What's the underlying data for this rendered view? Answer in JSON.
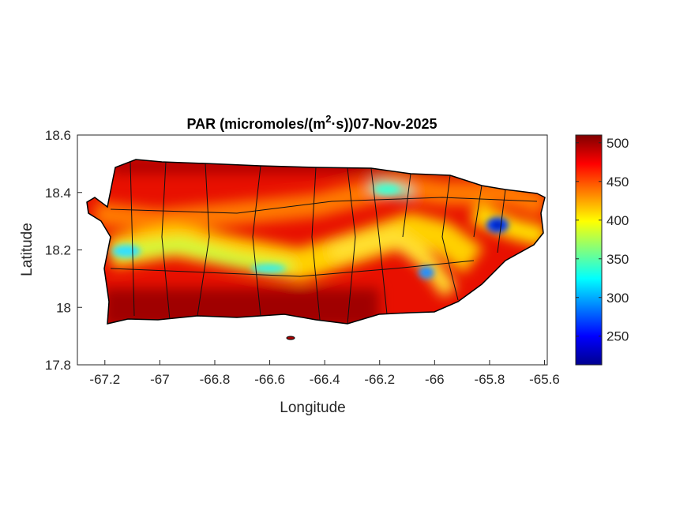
{
  "chart_data": {
    "type": "heatmap",
    "title_main": "PAR (micromoles/(m",
    "title_sup": "2",
    "title_rest": "·s))07-Nov-2025",
    "xlabel": "Longitude",
    "ylabel": "Latitude",
    "xlim": [
      -67.3,
      -65.59
    ],
    "ylim": [
      17.8,
      18.6
    ],
    "xticks": [
      -67.2,
      -67,
      -66.8,
      -66.6,
      -66.4,
      -66.2,
      -66,
      -65.8,
      -65.6
    ],
    "xtick_labels": [
      "-67.2",
      "-67",
      "-66.8",
      "-66.6",
      "-66.4",
      "-66.2",
      "-66",
      "-65.8",
      "-65.6"
    ],
    "yticks": [
      17.8,
      18,
      18.2,
      18.4,
      18.6
    ],
    "ytick_labels": [
      "17.8",
      "18",
      "18.2",
      "18.4",
      "18.6"
    ],
    "colormap": "jet",
    "clim": [
      213,
      510
    ],
    "colorbar_ticks": [
      250,
      300,
      350,
      400,
      450,
      500
    ],
    "colorbar_tick_labels": [
      "250",
      "300",
      "350",
      "400",
      "450",
      "500"
    ],
    "colorbar_location": "right",
    "grid": false
  }
}
